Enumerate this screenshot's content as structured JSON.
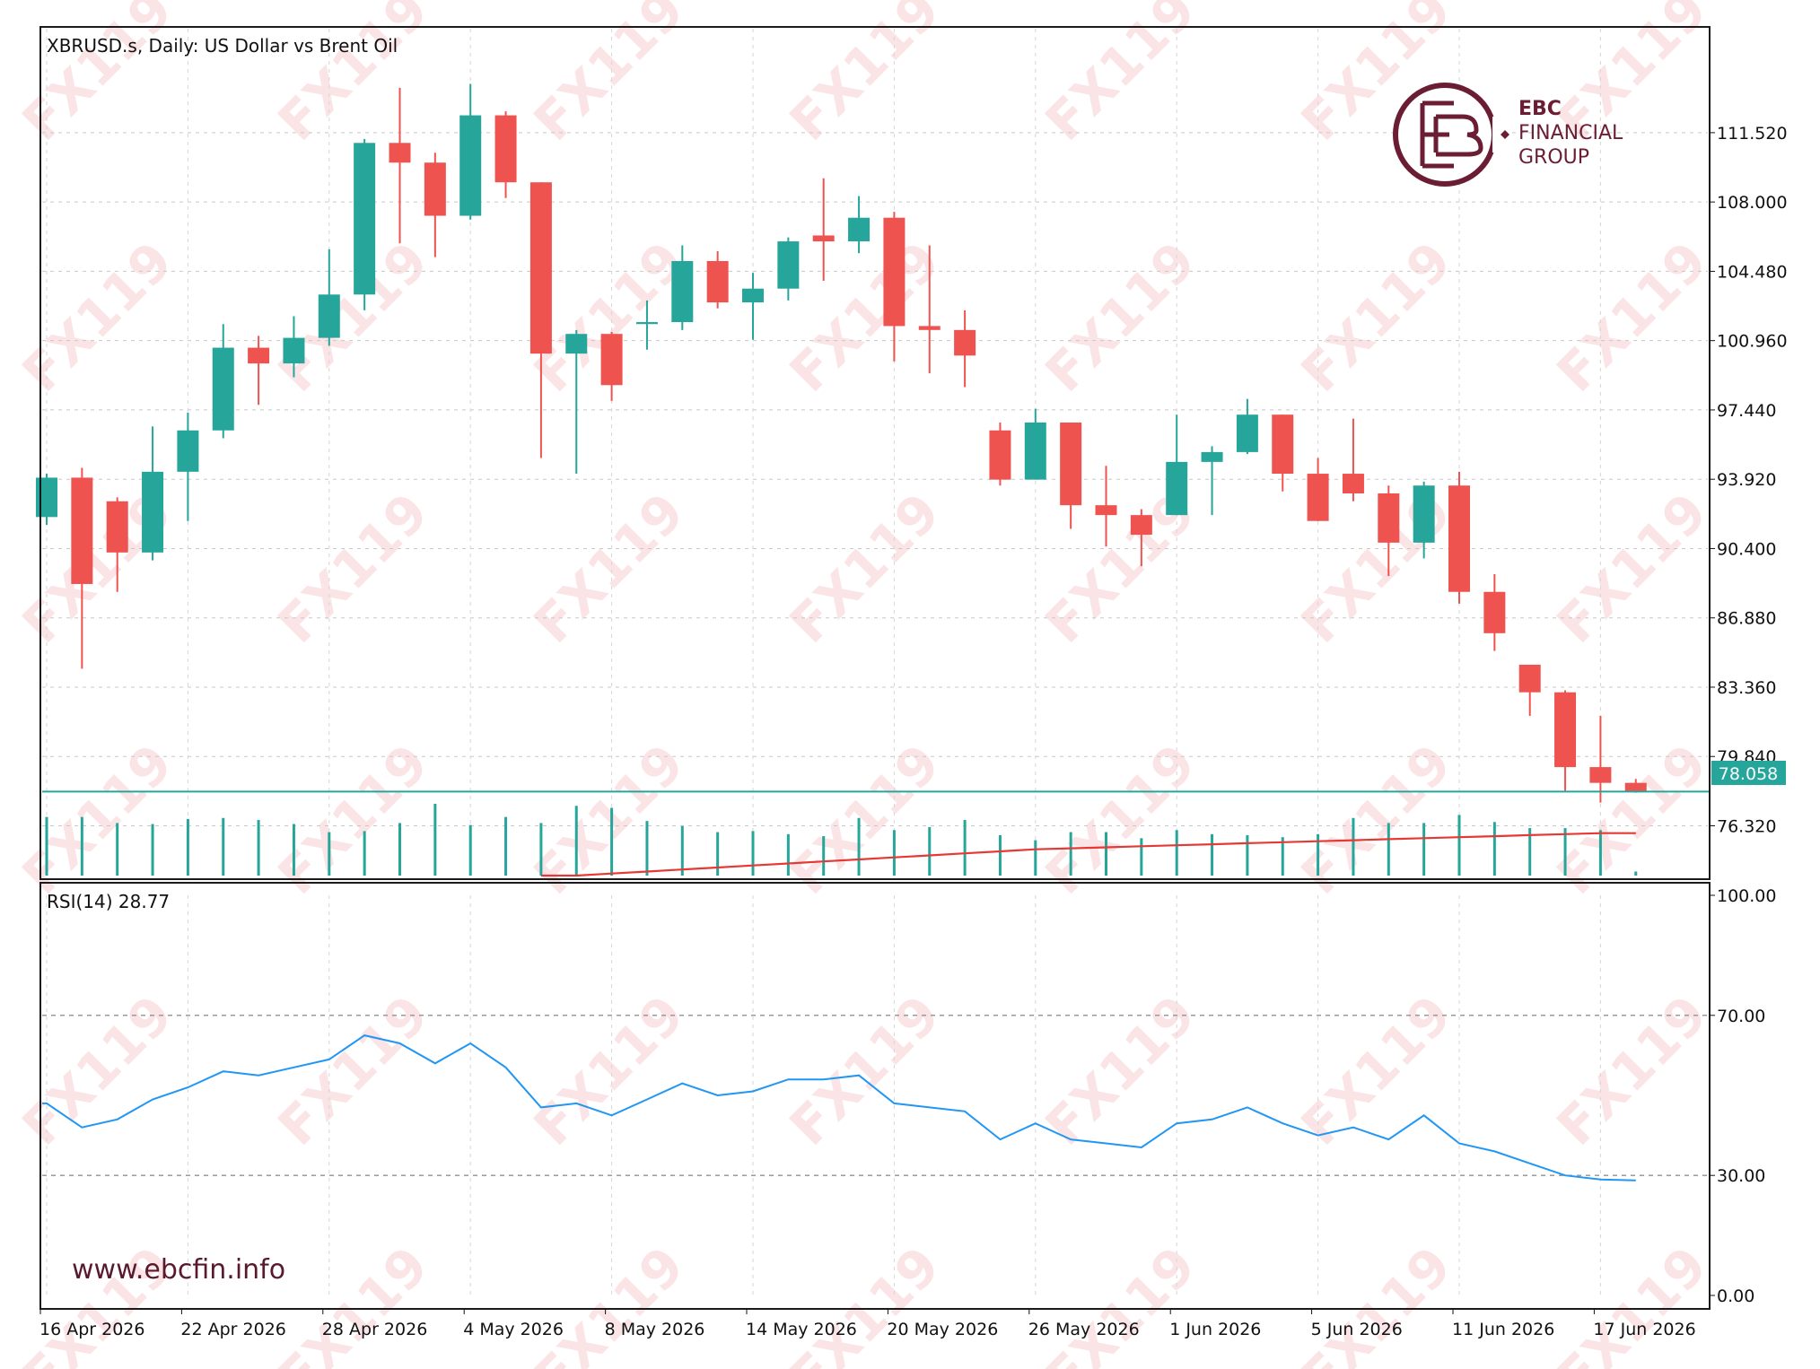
{
  "header": {
    "title": "XBRUSD.s, Daily:  US Dollar vs Brent Oil",
    "rsi_label": "RSI(14) 28.77"
  },
  "brand": {
    "line1": "EBC",
    "line2": "FINANCIAL",
    "line3": "GROUP",
    "website": "www.ebcfin.info",
    "watermark": "FX119",
    "color": "#6b1e33"
  },
  "colors": {
    "bull": "#26a69a",
    "bear": "#ef5350",
    "rsi_line": "#2196f3",
    "volume": "#26a69a",
    "volume_ma": "#e53935",
    "price_line": "#26a69a"
  },
  "chart_data": [
    {
      "type": "candlestick",
      "title": "XBRUSD.s, Daily:  US Dollar vs Brent Oil",
      "ylim": [
        73.7,
        116.8
      ],
      "y_ticks": [
        "111.520",
        "108.000",
        "104.480",
        "100.960",
        "97.440",
        "93.920",
        "90.400",
        "86.880",
        "83.360",
        "79.840",
        "76.320"
      ],
      "x_ticks": [
        "16 Apr 2026",
        "22 Apr 2026",
        "28 Apr 2026",
        "4 May 2026",
        "8 May 2026",
        "14 May 2026",
        "20 May 2026",
        "26 May 2026",
        "1 Jun 2026",
        "5 Jun 2026",
        "11 Jun 2026",
        "17 Jun 2026"
      ],
      "current_price": "78.058",
      "candles": [
        {
          "o": 92.0,
          "h": 94.2,
          "l": 91.6,
          "c": 94.0
        },
        {
          "o": 94.0,
          "h": 94.5,
          "l": 84.3,
          "c": 88.6
        },
        {
          "o": 92.8,
          "h": 93.0,
          "l": 88.2,
          "c": 90.2
        },
        {
          "o": 90.2,
          "h": 96.6,
          "l": 89.8,
          "c": 94.3
        },
        {
          "o": 94.3,
          "h": 97.3,
          "l": 91.8,
          "c": 96.4
        },
        {
          "o": 96.4,
          "h": 101.8,
          "l": 96.0,
          "c": 100.6
        },
        {
          "o": 100.6,
          "h": 101.2,
          "l": 97.7,
          "c": 99.8
        },
        {
          "o": 99.8,
          "h": 102.2,
          "l": 99.1,
          "c": 101.1
        },
        {
          "o": 101.1,
          "h": 105.6,
          "l": 100.7,
          "c": 103.3
        },
        {
          "o": 103.3,
          "h": 111.2,
          "l": 102.5,
          "c": 111.0
        },
        {
          "o": 111.0,
          "h": 113.8,
          "l": 105.9,
          "c": 110.0
        },
        {
          "o": 110.0,
          "h": 110.5,
          "l": 105.2,
          "c": 107.3
        },
        {
          "o": 107.3,
          "h": 114.0,
          "l": 107.1,
          "c": 112.4
        },
        {
          "o": 112.4,
          "h": 112.6,
          "l": 108.2,
          "c": 109.0
        },
        {
          "o": 109.0,
          "h": 109.0,
          "l": 95.0,
          "c": 100.3
        },
        {
          "o": 100.3,
          "h": 101.5,
          "l": 94.2,
          "c": 101.3
        },
        {
          "o": 101.3,
          "h": 101.4,
          "l": 97.9,
          "c": 98.7
        },
        {
          "o": 101.8,
          "h": 103.0,
          "l": 100.5,
          "c": 101.9
        },
        {
          "o": 101.9,
          "h": 105.8,
          "l": 101.5,
          "c": 105.0
        },
        {
          "o": 105.0,
          "h": 105.5,
          "l": 102.6,
          "c": 102.9
        },
        {
          "o": 102.9,
          "h": 104.4,
          "l": 101.0,
          "c": 103.6
        },
        {
          "o": 103.6,
          "h": 106.2,
          "l": 103.0,
          "c": 106.0
        },
        {
          "o": 106.3,
          "h": 109.2,
          "l": 104.0,
          "c": 106.0
        },
        {
          "o": 106.0,
          "h": 108.3,
          "l": 105.4,
          "c": 107.2
        },
        {
          "o": 107.2,
          "h": 107.5,
          "l": 99.9,
          "c": 101.7
        },
        {
          "o": 101.7,
          "h": 105.8,
          "l": 99.3,
          "c": 101.5
        },
        {
          "o": 101.5,
          "h": 102.5,
          "l": 98.6,
          "c": 100.2
        },
        {
          "o": 96.4,
          "h": 96.8,
          "l": 93.6,
          "c": 93.9
        },
        {
          "o": 93.9,
          "h": 97.5,
          "l": 93.9,
          "c": 96.8
        },
        {
          "o": 96.8,
          "h": 96.8,
          "l": 91.4,
          "c": 92.6
        },
        {
          "o": 92.6,
          "h": 94.6,
          "l": 90.5,
          "c": 92.1
        },
        {
          "o": 92.1,
          "h": 92.4,
          "l": 89.5,
          "c": 91.1
        },
        {
          "o": 92.1,
          "h": 97.2,
          "l": 92.1,
          "c": 94.8
        },
        {
          "o": 94.8,
          "h": 95.6,
          "l": 92.1,
          "c": 95.3
        },
        {
          "o": 95.3,
          "h": 98.0,
          "l": 95.2,
          "c": 97.2
        },
        {
          "o": 97.2,
          "h": 97.2,
          "l": 93.3,
          "c": 94.2
        },
        {
          "o": 94.2,
          "h": 95.0,
          "l": 91.8,
          "c": 91.8
        },
        {
          "o": 94.2,
          "h": 97.0,
          "l": 92.8,
          "c": 93.2
        },
        {
          "o": 93.2,
          "h": 93.6,
          "l": 89.0,
          "c": 90.7
        },
        {
          "o": 90.7,
          "h": 93.8,
          "l": 89.9,
          "c": 93.6
        },
        {
          "o": 93.6,
          "h": 94.3,
          "l": 87.6,
          "c": 88.2
        },
        {
          "o": 88.2,
          "h": 89.1,
          "l": 85.2,
          "c": 86.1
        },
        {
          "o": 84.5,
          "h": 84.5,
          "l": 81.9,
          "c": 83.1
        },
        {
          "o": 83.1,
          "h": 83.2,
          "l": 78.1,
          "c": 79.3
        },
        {
          "o": 79.3,
          "h": 81.9,
          "l": 77.5,
          "c": 78.5
        },
        {
          "o": 78.5,
          "h": 78.7,
          "l": 78.0,
          "c": 78.06
        }
      ]
    },
    {
      "type": "bar",
      "title": "",
      "values": [
        58,
        58,
        52,
        51,
        56,
        57,
        55,
        51,
        43,
        44,
        52,
        71,
        50,
        58,
        52,
        69,
        67,
        54,
        49,
        43,
        44,
        41,
        39,
        57,
        45,
        48,
        55,
        40,
        35,
        43,
        43,
        37,
        45,
        41,
        40,
        38,
        41,
        57,
        52,
        52,
        60,
        53,
        47,
        47,
        45,
        4
      ],
      "ma_values": [
        null,
        null,
        null,
        null,
        null,
        null,
        null,
        null,
        null,
        null,
        null,
        null,
        null,
        null,
        -2,
        0,
        2,
        4,
        6,
        8,
        10,
        12,
        14,
        16,
        18,
        20,
        22,
        24,
        26,
        27,
        28,
        29,
        30,
        31,
        32,
        33,
        34,
        35,
        36,
        37,
        38,
        39,
        40,
        41,
        42,
        42
      ]
    },
    {
      "type": "line",
      "title": "RSI(14) 28.77",
      "ylim": [
        0,
        100
      ],
      "y_ticks": [
        "100.00",
        "70.00",
        "30.00",
        "0.00"
      ],
      "levels": [
        70,
        30
      ],
      "values": [
        48,
        42,
        44,
        49,
        52,
        56,
        55,
        57,
        59,
        65,
        63,
        58,
        63,
        57,
        47,
        48,
        45,
        49,
        53,
        50,
        51,
        54,
        54,
        55,
        48,
        47,
        46,
        39,
        43,
        39,
        38,
        37,
        43,
        44,
        47,
        43,
        40,
        42,
        39,
        45,
        38,
        36,
        33,
        30,
        29,
        28.77
      ]
    }
  ]
}
